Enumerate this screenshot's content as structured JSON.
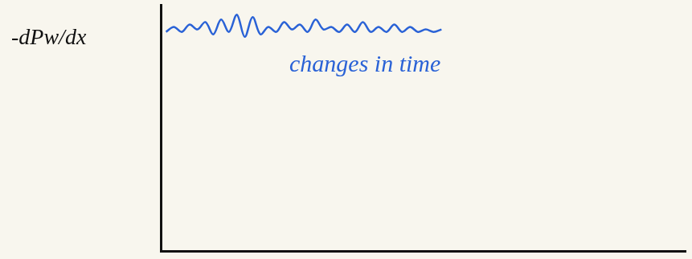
{
  "chart_data": {
    "type": "line",
    "y_label": "-dPw/dx",
    "annotation": "changes in time",
    "x": [
      1,
      2.5,
      4,
      5.5,
      7,
      8.5,
      10,
      11.5,
      13,
      14.5,
      16,
      17.5,
      19,
      20.5,
      22,
      23.5,
      25,
      26.5,
      28,
      29.5,
      31,
      32.5,
      34,
      35.5,
      37,
      38.5,
      40,
      41.5,
      43,
      44.5,
      46,
      47.5,
      49,
      50.5,
      52,
      53.5
    ],
    "values": [
      8.9,
      9.1,
      8.9,
      9.2,
      9.0,
      9.3,
      8.8,
      9.4,
      8.9,
      9.6,
      8.7,
      9.5,
      8.8,
      9.1,
      8.9,
      9.3,
      9.0,
      9.2,
      8.9,
      9.4,
      9.0,
      9.1,
      8.9,
      9.2,
      8.9,
      9.3,
      8.9,
      9.1,
      8.9,
      9.2,
      8.9,
      9.1,
      8.9,
      9.0,
      8.9,
      9.0
    ],
    "color": "#2a62d6",
    "xlim": [
      0,
      100
    ],
    "ylim": [
      0,
      10
    ],
    "grid": false,
    "tick_labels": false
  }
}
